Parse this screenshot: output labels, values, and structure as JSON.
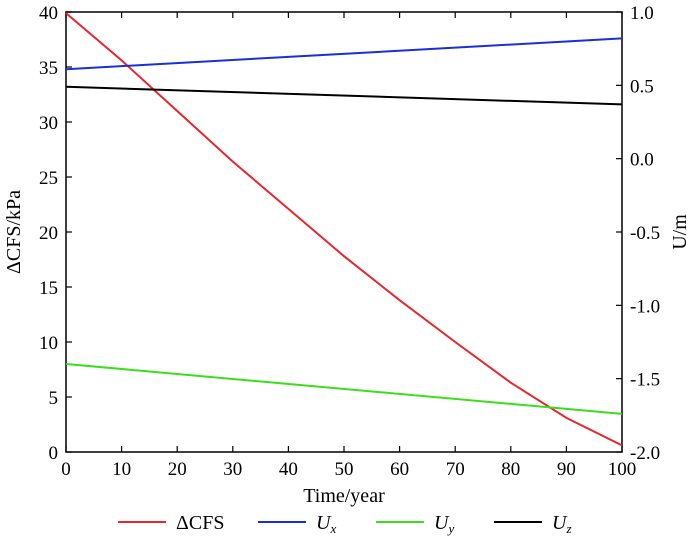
{
  "chart_data": {
    "type": "line",
    "xlabel": "Time/year",
    "ylabel_left": "ΔCFS/kPa",
    "ylabel_right": "U/m",
    "xlim": [
      0,
      100
    ],
    "ylim_left": [
      0,
      40
    ],
    "ylim_right": [
      -2.0,
      1.0
    ],
    "x_ticks": [
      0,
      10,
      20,
      30,
      40,
      50,
      60,
      70,
      80,
      90,
      100
    ],
    "x_tick_labels": [
      "0",
      "10",
      "20",
      "30",
      "40",
      "50",
      "60",
      "70",
      "80",
      "90",
      "100"
    ],
    "y_left_ticks": [
      0,
      5,
      10,
      15,
      20,
      25,
      30,
      35,
      40
    ],
    "y_left_tick_labels": [
      "0",
      "5",
      "10",
      "15",
      "20",
      "25",
      "30",
      "35",
      "40"
    ],
    "y_right_ticks": [
      -2.0,
      -1.5,
      -1.0,
      -0.5,
      0.0,
      0.5,
      1.0
    ],
    "y_right_tick_labels": [
      "-2.0",
      "-1.5",
      "-1.0",
      "-0.5",
      "0.0",
      "0.5",
      "1.0"
    ],
    "series": [
      {
        "name": "ΔCFS",
        "base": "ΔCFS",
        "sub": "",
        "axis": "left",
        "color": "#e8262b",
        "x": [
          0,
          10,
          20,
          30,
          40,
          50,
          60,
          70,
          80,
          90,
          100
        ],
        "values": [
          39.9,
          35.6,
          31.0,
          26.4,
          22.1,
          17.8,
          13.8,
          10.0,
          6.3,
          3.1,
          0.6
        ]
      },
      {
        "name": "Ux",
        "base": "U",
        "sub": "x",
        "axis": "right",
        "color": "#1a2fd6",
        "x": [
          0,
          100
        ],
        "values": [
          0.61,
          0.82
        ]
      },
      {
        "name": "Uy",
        "base": "U",
        "sub": "y",
        "axis": "right",
        "color": "#3cde1c",
        "x": [
          0,
          100
        ],
        "values": [
          -1.4,
          -1.74
        ]
      },
      {
        "name": "Uz",
        "base": "U",
        "sub": "z",
        "axis": "right",
        "color": "#000000",
        "x": [
          0,
          100
        ],
        "values": [
          0.49,
          0.37
        ]
      }
    ],
    "legend_position": "bottom"
  }
}
